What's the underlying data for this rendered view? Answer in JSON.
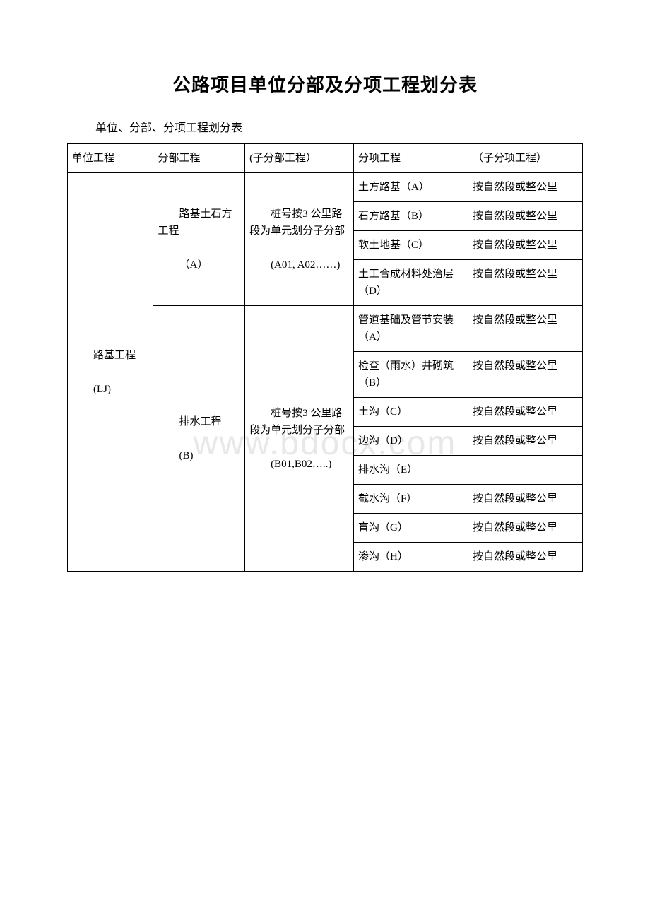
{
  "title": "公路项目单位分部及分项工程划分表",
  "subtitle": "单位、分部、分项工程划分表",
  "watermark": "www.bdocx.com",
  "headers": {
    "col1": "单位工程",
    "col2": "分部工程",
    "col3": "(子分部工程）",
    "col4": "分项工程",
    "col5": "（子分项工程）"
  },
  "unit_project": {
    "name": "路基工程",
    "code": "(LJ)"
  },
  "sections": [
    {
      "name": "路基土石方工程",
      "code": "（A）",
      "sub_section": {
        "desc": "桩号按3 公里路段为单元划分子分部",
        "code": "(A01, A02……)"
      },
      "items": [
        {
          "name": "土方路基（A）",
          "sub": "按自然段或整公里"
        },
        {
          "name": "石方路基（B）",
          "sub": "按自然段或整公里"
        },
        {
          "name": "软土地基（C）",
          "sub": "按自然段或整公里"
        },
        {
          "name": "土工合成材料处治层（D）",
          "sub": "按自然段或整公里"
        }
      ]
    },
    {
      "name": "排水工程",
      "code": "(B)",
      "sub_section": {
        "desc": "桩号按3 公里路段为单元划分子分部",
        "code": "(B01,B02…..)"
      },
      "items": [
        {
          "name": "管道基础及管节安装（A）",
          "sub": "按自然段或整公里"
        },
        {
          "name": "检查（雨水）井砌筑（B）",
          "sub": "按自然段或整公里"
        },
        {
          "name": "土沟（C）",
          "sub": "按自然段或整公里"
        },
        {
          "name": "边沟（D）",
          "sub": "按自然段或整公里"
        },
        {
          "name": "排水沟（E）",
          "sub": ""
        },
        {
          "name": "截水沟（F）",
          "sub": "按自然段或整公里"
        },
        {
          "name": "盲沟（G）",
          "sub": "按自然段或整公里"
        },
        {
          "name": "渗沟（H）",
          "sub": "按自然段或整公里"
        }
      ]
    }
  ]
}
